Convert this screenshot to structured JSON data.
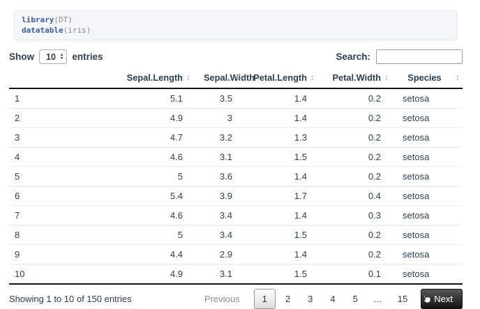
{
  "code_block": {
    "lines": [
      {
        "fn": "library",
        "rest": "(DT)"
      },
      {
        "fn": "datatable",
        "rest": "(iris)"
      }
    ]
  },
  "controls": {
    "show_label": "Show",
    "page_length": "10",
    "entries_label": "entries",
    "search_label": "Search:",
    "search_value": ""
  },
  "table": {
    "columns": [
      {
        "label": "",
        "type": "rowname",
        "sortable": false
      },
      {
        "label": "Sepal.Length",
        "type": "num",
        "sortable": true
      },
      {
        "label": "Sepal.Width",
        "type": "num",
        "sortable": true
      },
      {
        "label": "Petal.Length",
        "type": "num",
        "sortable": true
      },
      {
        "label": "Petal.Width",
        "type": "num",
        "sortable": true
      },
      {
        "label": "Species",
        "type": "species",
        "sortable": true
      }
    ],
    "rows": [
      [
        "1",
        "5.1",
        "3.5",
        "1.4",
        "0.2",
        "setosa"
      ],
      [
        "2",
        "4.9",
        "3",
        "1.4",
        "0.2",
        "setosa"
      ],
      [
        "3",
        "4.7",
        "3.2",
        "1.3",
        "0.2",
        "setosa"
      ],
      [
        "4",
        "4.6",
        "3.1",
        "1.5",
        "0.2",
        "setosa"
      ],
      [
        "5",
        "5",
        "3.6",
        "1.4",
        "0.2",
        "setosa"
      ],
      [
        "6",
        "5.4",
        "3.9",
        "1.7",
        "0.4",
        "setosa"
      ],
      [
        "7",
        "4.6",
        "3.4",
        "1.4",
        "0.3",
        "setosa"
      ],
      [
        "8",
        "5",
        "3.4",
        "1.5",
        "0.2",
        "setosa"
      ],
      [
        "9",
        "4.4",
        "2.9",
        "1.4",
        "0.2",
        "setosa"
      ],
      [
        "10",
        "4.9",
        "3.1",
        "1.5",
        "0.1",
        "setosa"
      ]
    ]
  },
  "footer": {
    "info": "Showing 1 to 10 of 150 entries",
    "pagination": {
      "previous_label": "Previous",
      "pages": [
        "1",
        "2",
        "3",
        "4",
        "5",
        "…",
        "15"
      ],
      "current_page": "1",
      "next_label": "Next"
    }
  },
  "icons": {
    "sort_icon": "up-down-sort-arrows",
    "select_stepper": "up-down-stepper-arrows",
    "cursor": "hand-pointer"
  },
  "colors": {
    "text": "#2c3e50",
    "table_dark_border": "#111111",
    "row_border": "#e9ecee",
    "code_background": "#f5f6f7",
    "code_function": "#3b5ea8",
    "code_argument": "#8a8a8a",
    "pagination_active_border": "#979797",
    "pagination_next_background": "#111111"
  }
}
